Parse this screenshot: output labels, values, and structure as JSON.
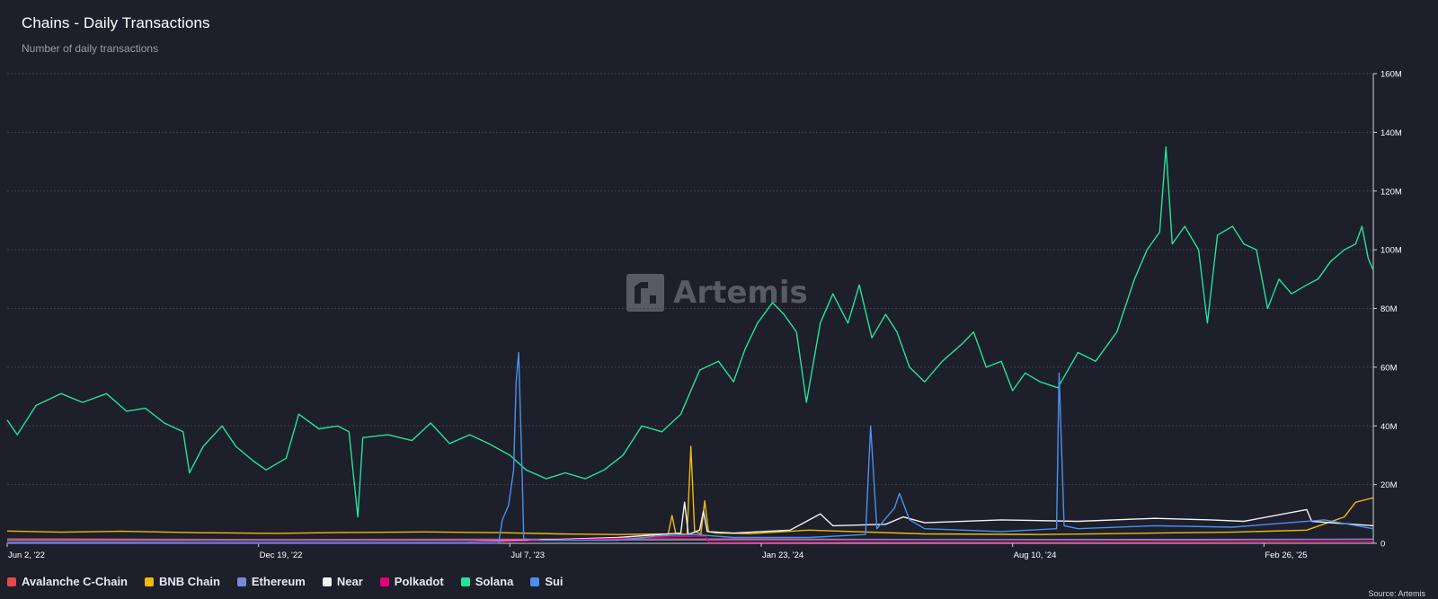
{
  "header": {
    "title": "Chains - Daily Transactions",
    "subtitle": "Number of daily transactions"
  },
  "watermark": {
    "text": "Artemis",
    "icon": "artemis-logo-icon"
  },
  "source": "Source: Artemis",
  "colors": {
    "background": "#1d1f2b",
    "grid": "#3e414f",
    "axis_text": "#ffffff"
  },
  "chart_data": {
    "type": "line",
    "title": "Chains - Daily Transactions",
    "subtitle": "Number of daily transactions",
    "x_axis": {
      "type": "date",
      "start": "2022-06-02",
      "end": "2025-05-24",
      "ticks": [
        {
          "date": "2022-06-02",
          "label": "Jun 2, '22"
        },
        {
          "date": "2022-12-19",
          "label": "Dec 19, '22"
        },
        {
          "date": "2023-07-07",
          "label": "Jul 7, '23"
        },
        {
          "date": "2024-01-23",
          "label": "Jan 23, '24"
        },
        {
          "date": "2024-08-10",
          "label": "Aug 10, '24"
        },
        {
          "date": "2025-02-26",
          "label": "Feb 26, '25"
        }
      ]
    },
    "y_axis": {
      "position": "right",
      "min": 0,
      "max": 160000000,
      "ticks": [
        {
          "value": 0,
          "label": "0"
        },
        {
          "value": 20000000,
          "label": "20M"
        },
        {
          "value": 40000000,
          "label": "40M"
        },
        {
          "value": 60000000,
          "label": "60M"
        },
        {
          "value": 80000000,
          "label": "80M"
        },
        {
          "value": 100000000,
          "label": "100M"
        },
        {
          "value": 120000000,
          "label": "120M"
        },
        {
          "value": 140000000,
          "label": "140M"
        },
        {
          "value": 160000000,
          "label": "160M"
        }
      ],
      "grid": true
    },
    "legend_position": "bottom-left",
    "series": [
      {
        "name": "Avalanche C-Chain",
        "color": "#e5484d",
        "points": [
          [
            "2022-06-02",
            1500000
          ],
          [
            "2023-01-01",
            1300000
          ],
          [
            "2023-07-01",
            1400000
          ],
          [
            "2024-01-01",
            1500000
          ],
          [
            "2024-06-01",
            1300000
          ],
          [
            "2025-01-01",
            1100000
          ],
          [
            "2025-05-24",
            1400000
          ]
        ]
      },
      {
        "name": "BNB Chain",
        "color": "#f0b90b",
        "points": [
          [
            "2022-06-02",
            4200000
          ],
          [
            "2022-07-15",
            3800000
          ],
          [
            "2022-09-01",
            4100000
          ],
          [
            "2022-11-01",
            3600000
          ],
          [
            "2023-01-01",
            3400000
          ],
          [
            "2023-03-01",
            3700000
          ],
          [
            "2023-05-01",
            3900000
          ],
          [
            "2023-07-01",
            3600000
          ],
          [
            "2023-08-15",
            3200000
          ],
          [
            "2023-10-01",
            3000000
          ],
          [
            "2023-11-10",
            3200000
          ],
          [
            "2023-11-13",
            9500000
          ],
          [
            "2023-11-16",
            3300000
          ],
          [
            "2023-11-25",
            3100000
          ],
          [
            "2023-11-28",
            33000000
          ],
          [
            "2023-12-01",
            4000000
          ],
          [
            "2023-12-06",
            3200000
          ],
          [
            "2023-12-09",
            14500000
          ],
          [
            "2023-12-12",
            4000000
          ],
          [
            "2023-12-18",
            3500000
          ],
          [
            "2024-01-15",
            3300000
          ],
          [
            "2024-03-01",
            4500000
          ],
          [
            "2024-06-01",
            3200000
          ],
          [
            "2024-09-01",
            3000000
          ],
          [
            "2024-12-01",
            3500000
          ],
          [
            "2025-02-01",
            3800000
          ],
          [
            "2025-04-01",
            4500000
          ],
          [
            "2025-05-01",
            9000000
          ],
          [
            "2025-05-10",
            14000000
          ],
          [
            "2025-05-24",
            15500000
          ]
        ]
      },
      {
        "name": "Ethereum",
        "color": "#7b89d9",
        "points": [
          [
            "2022-06-02",
            1100000
          ],
          [
            "2023-06-01",
            1100000
          ],
          [
            "2024-01-01",
            1200000
          ],
          [
            "2024-08-01",
            1300000
          ],
          [
            "2025-05-24",
            1400000
          ]
        ]
      },
      {
        "name": "Near",
        "color": "#f2f2f2",
        "points": [
          [
            "2022-06-02",
            300000
          ],
          [
            "2023-06-01",
            300000
          ],
          [
            "2023-10-01",
            2000000
          ],
          [
            "2023-11-20",
            3500000
          ],
          [
            "2023-11-23",
            14000000
          ],
          [
            "2023-11-26",
            3000000
          ],
          [
            "2023-12-05",
            4500000
          ],
          [
            "2023-12-08",
            11000000
          ],
          [
            "2023-12-11",
            4000000
          ],
          [
            "2024-01-01",
            3500000
          ],
          [
            "2024-02-15",
            4500000
          ],
          [
            "2024-03-10",
            10000000
          ],
          [
            "2024-03-20",
            6000000
          ],
          [
            "2024-05-01",
            6500000
          ],
          [
            "2024-05-15",
            9000000
          ],
          [
            "2024-06-01",
            7000000
          ],
          [
            "2024-08-01",
            8000000
          ],
          [
            "2024-10-01",
            7500000
          ],
          [
            "2024-12-01",
            8500000
          ],
          [
            "2025-01-15",
            8000000
          ],
          [
            "2025-02-10",
            7500000
          ],
          [
            "2025-03-01",
            9000000
          ],
          [
            "2025-04-01",
            11500000
          ],
          [
            "2025-04-05",
            7500000
          ],
          [
            "2025-05-24",
            6000000
          ]
        ]
      },
      {
        "name": "Polkadot",
        "color": "#e6007a",
        "points": [
          [
            "2022-06-02",
            200000
          ],
          [
            "2023-06-01",
            250000
          ],
          [
            "2023-12-10",
            2500000
          ],
          [
            "2023-12-12",
            300000
          ],
          [
            "2024-06-01",
            400000
          ],
          [
            "2025-01-01",
            500000
          ],
          [
            "2025-05-24",
            600000
          ]
        ]
      },
      {
        "name": "Solana",
        "color": "#25e398",
        "points": [
          [
            "2022-06-02",
            42000000
          ],
          [
            "2022-06-10",
            37000000
          ],
          [
            "2022-06-25",
            47000000
          ],
          [
            "2022-07-15",
            51000000
          ],
          [
            "2022-08-01",
            48000000
          ],
          [
            "2022-08-20",
            51000000
          ],
          [
            "2022-09-05",
            45000000
          ],
          [
            "2022-09-20",
            46000000
          ],
          [
            "2022-10-05",
            41000000
          ],
          [
            "2022-10-20",
            38000000
          ],
          [
            "2022-10-25",
            24000000
          ],
          [
            "2022-11-05",
            33000000
          ],
          [
            "2022-11-20",
            40000000
          ],
          [
            "2022-12-01",
            33000000
          ],
          [
            "2022-12-15",
            28000000
          ],
          [
            "2022-12-25",
            25000000
          ],
          [
            "2023-01-10",
            29000000
          ],
          [
            "2023-01-20",
            44000000
          ],
          [
            "2023-02-05",
            39000000
          ],
          [
            "2023-02-20",
            40000000
          ],
          [
            "2023-03-01",
            38000000
          ],
          [
            "2023-03-08",
            9000000
          ],
          [
            "2023-03-12",
            36000000
          ],
          [
            "2023-04-01",
            37000000
          ],
          [
            "2023-04-20",
            35000000
          ],
          [
            "2023-05-05",
            41000000
          ],
          [
            "2023-05-20",
            34000000
          ],
          [
            "2023-06-05",
            37000000
          ],
          [
            "2023-06-20",
            34000000
          ],
          [
            "2023-07-07",
            30000000
          ],
          [
            "2023-07-20",
            25000000
          ],
          [
            "2023-08-05",
            22000000
          ],
          [
            "2023-08-20",
            24000000
          ],
          [
            "2023-09-05",
            22000000
          ],
          [
            "2023-09-20",
            25000000
          ],
          [
            "2023-10-05",
            30000000
          ],
          [
            "2023-10-20",
            40000000
          ],
          [
            "2023-11-05",
            38000000
          ],
          [
            "2023-11-20",
            44000000
          ],
          [
            "2023-12-05",
            59000000
          ],
          [
            "2023-12-20",
            62000000
          ],
          [
            "2024-01-01",
            55000000
          ],
          [
            "2024-01-10",
            66000000
          ],
          [
            "2024-01-20",
            75000000
          ],
          [
            "2024-02-01",
            82000000
          ],
          [
            "2024-02-10",
            78000000
          ],
          [
            "2024-02-20",
            72000000
          ],
          [
            "2024-02-28",
            48000000
          ],
          [
            "2024-03-10",
            75000000
          ],
          [
            "2024-03-20",
            85000000
          ],
          [
            "2024-04-01",
            75000000
          ],
          [
            "2024-04-10",
            88000000
          ],
          [
            "2024-04-20",
            70000000
          ],
          [
            "2024-05-01",
            78000000
          ],
          [
            "2024-05-10",
            72000000
          ],
          [
            "2024-05-20",
            60000000
          ],
          [
            "2024-06-01",
            55000000
          ],
          [
            "2024-06-15",
            62000000
          ],
          [
            "2024-07-01",
            68000000
          ],
          [
            "2024-07-10",
            72000000
          ],
          [
            "2024-07-20",
            60000000
          ],
          [
            "2024-08-01",
            62000000
          ],
          [
            "2024-08-10",
            52000000
          ],
          [
            "2024-08-20",
            58000000
          ],
          [
            "2024-09-01",
            55000000
          ],
          [
            "2024-09-15",
            53000000
          ],
          [
            "2024-10-01",
            65000000
          ],
          [
            "2024-10-15",
            62000000
          ],
          [
            "2024-11-01",
            72000000
          ],
          [
            "2024-11-15",
            90000000
          ],
          [
            "2024-11-25",
            100000000
          ],
          [
            "2024-12-05",
            106000000
          ],
          [
            "2024-12-10",
            135000000
          ],
          [
            "2024-12-15",
            102000000
          ],
          [
            "2024-12-25",
            108000000
          ],
          [
            "2025-01-05",
            100000000
          ],
          [
            "2025-01-12",
            75000000
          ],
          [
            "2025-01-20",
            105000000
          ],
          [
            "2025-02-01",
            108000000
          ],
          [
            "2025-02-10",
            102000000
          ],
          [
            "2025-02-20",
            100000000
          ],
          [
            "2025-03-01",
            80000000
          ],
          [
            "2025-03-10",
            90000000
          ],
          [
            "2025-03-20",
            85000000
          ],
          [
            "2025-04-01",
            88000000
          ],
          [
            "2025-04-10",
            90000000
          ],
          [
            "2025-04-20",
            96000000
          ],
          [
            "2025-05-01",
            100000000
          ],
          [
            "2025-05-10",
            102000000
          ],
          [
            "2025-05-15",
            108000000
          ],
          [
            "2025-05-20",
            97000000
          ],
          [
            "2025-05-24",
            93000000
          ]
        ]
      },
      {
        "name": "Sui",
        "color": "#4a90f0",
        "points": [
          [
            "2022-06-02",
            0
          ],
          [
            "2023-06-28",
            0
          ],
          [
            "2023-07-01",
            8000000
          ],
          [
            "2023-07-06",
            13000000
          ],
          [
            "2023-07-10",
            25000000
          ],
          [
            "2023-07-12",
            55000000
          ],
          [
            "2023-07-14",
            65000000
          ],
          [
            "2023-07-17",
            20000000
          ],
          [
            "2023-07-18",
            1500000
          ],
          [
            "2023-08-01",
            1000000
          ],
          [
            "2023-10-01",
            1000000
          ],
          [
            "2023-11-01",
            2500000
          ],
          [
            "2023-12-01",
            3000000
          ],
          [
            "2024-01-01",
            2000000
          ],
          [
            "2024-03-01",
            2000000
          ],
          [
            "2024-04-15",
            3000000
          ],
          [
            "2024-04-19",
            40000000
          ],
          [
            "2024-04-24",
            5000000
          ],
          [
            "2024-05-08",
            12000000
          ],
          [
            "2024-05-12",
            17000000
          ],
          [
            "2024-05-20",
            8000000
          ],
          [
            "2024-06-01",
            5000000
          ],
          [
            "2024-08-01",
            4000000
          ],
          [
            "2024-09-14",
            5000000
          ],
          [
            "2024-09-16",
            58000000
          ],
          [
            "2024-09-20",
            6000000
          ],
          [
            "2024-10-01",
            5000000
          ],
          [
            "2024-12-01",
            6000000
          ],
          [
            "2025-02-01",
            5500000
          ],
          [
            "2025-04-15",
            8000000
          ],
          [
            "2025-05-24",
            5000000
          ]
        ]
      }
    ]
  }
}
